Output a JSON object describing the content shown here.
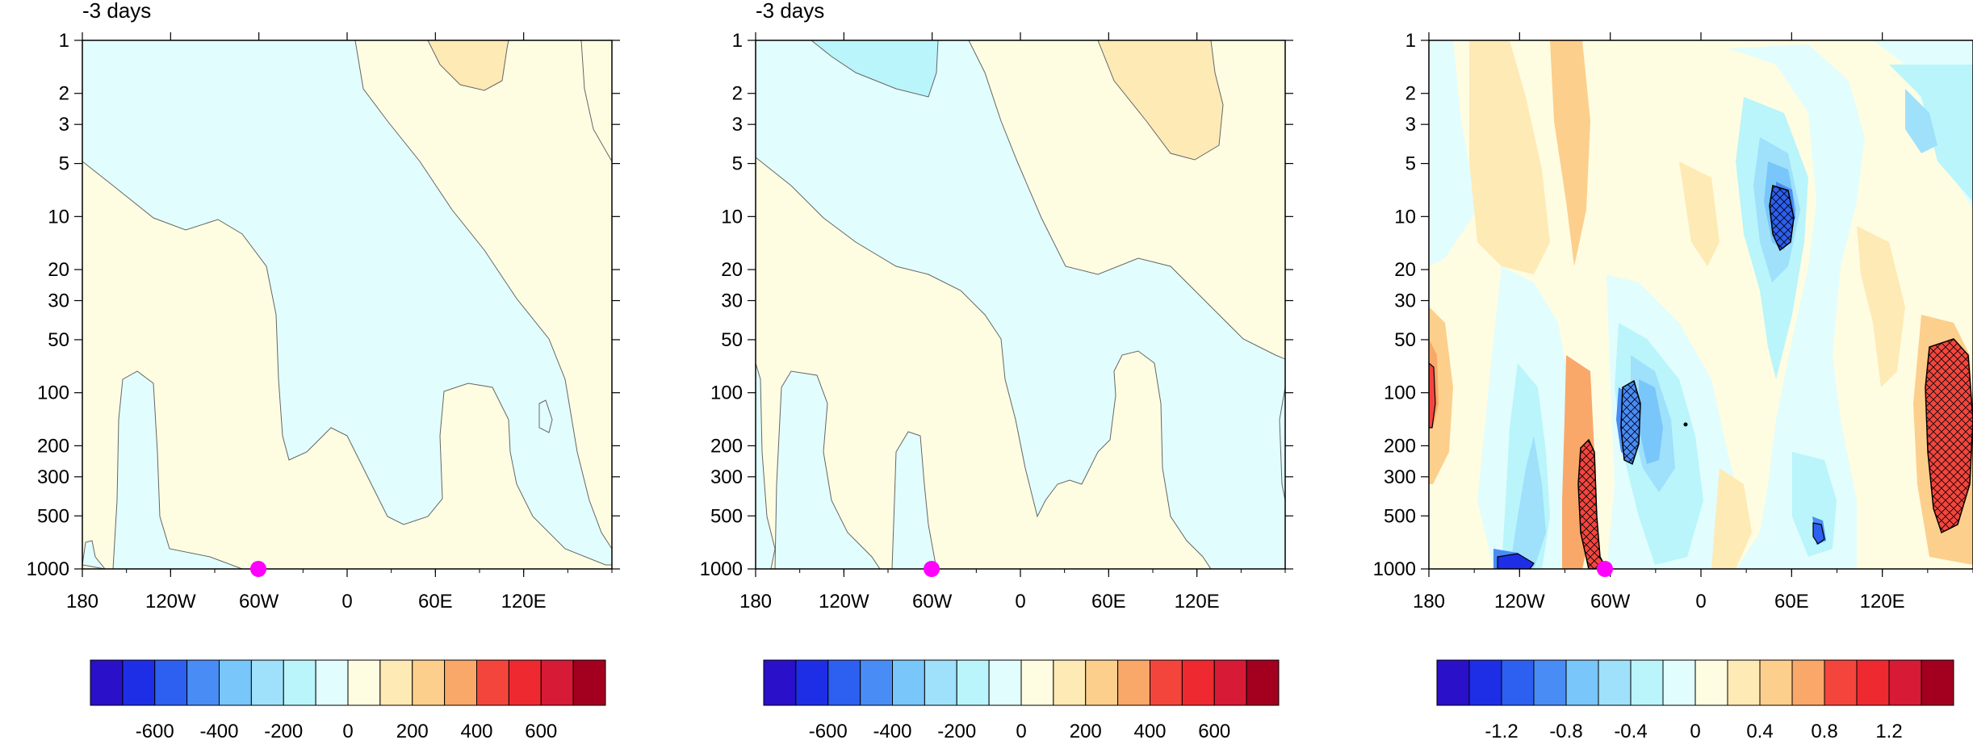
{
  "palette": [
    "#2a10c8",
    "#1e2ee6",
    "#2d5ff0",
    "#4a8cf5",
    "#78c6fa",
    "#9fe0fb",
    "#b9f5fb",
    "#e2fdfd",
    "#fefde2",
    "#feeab5",
    "#fccf8c",
    "#f9a86a",
    "#f4453d",
    "#ee2a30",
    "#d71a35",
    "#a3001f"
  ],
  "hatch_color": "#000000",
  "marker_color": "#ff00ff",
  "chart_data": [
    {
      "type": "heatmap",
      "title": "-3 days",
      "x_ticks": [
        "180",
        "120W",
        "60W",
        "0",
        "60E",
        "120E"
      ],
      "y_ticks": [
        "1",
        "2",
        "3",
        "5",
        "10",
        "20",
        "30",
        "50",
        "100",
        "200",
        "300",
        "500",
        "1000"
      ],
      "y_scale": "log",
      "ylim": [
        1000,
        1
      ],
      "x_range": [
        "180",
        "180"
      ],
      "colorbar_labels": [
        "-600",
        "-400",
        "-200",
        "0",
        "200",
        "400",
        "600"
      ],
      "colorbar_levels": [
        -700,
        -600,
        -500,
        -400,
        -300,
        -200,
        -100,
        0,
        100,
        200,
        300,
        400,
        500,
        600,
        700
      ],
      "marker": {
        "lon": "60W",
        "pressure": 1000
      }
    },
    {
      "type": "heatmap",
      "title": "-3 days",
      "x_ticks": [
        "180",
        "120W",
        "60W",
        "0",
        "60E",
        "120E"
      ],
      "y_ticks": [
        "1",
        "2",
        "3",
        "5",
        "10",
        "20",
        "30",
        "50",
        "100",
        "200",
        "300",
        "500",
        "1000"
      ],
      "y_scale": "log",
      "ylim": [
        1000,
        1
      ],
      "x_range": [
        "180",
        "180"
      ],
      "colorbar_labels": [
        "-600",
        "-400",
        "-200",
        "0",
        "200",
        "400",
        "600"
      ],
      "colorbar_levels": [
        -700,
        -600,
        -500,
        -400,
        -300,
        -200,
        -100,
        0,
        100,
        200,
        300,
        400,
        500,
        600,
        700
      ],
      "marker": {
        "lon": "60W",
        "pressure": 1000
      }
    },
    {
      "type": "heatmap",
      "title": "",
      "x_ticks": [
        "180",
        "120W",
        "60W",
        "0",
        "60E",
        "120E"
      ],
      "y_ticks": [
        "1",
        "2",
        "3",
        "5",
        "10",
        "20",
        "30",
        "50",
        "100",
        "200",
        "300",
        "500",
        "1000"
      ],
      "y_scale": "log",
      "ylim": [
        1000,
        1
      ],
      "x_range": [
        "180",
        "180"
      ],
      "colorbar_labels": [
        "-1.2",
        "-0.8",
        "-0.4",
        "0",
        "0.4",
        "0.8",
        "1.2"
      ],
      "colorbar_levels": [
        -1.4,
        -1.2,
        -1.0,
        -0.8,
        -0.6,
        -0.4,
        -0.2,
        0,
        0.2,
        0.4,
        0.6,
        0.8,
        1.0,
        1.2,
        1.4
      ],
      "hatched_regions": "significant",
      "marker": {
        "lon": "60W",
        "pressure": 1000
      }
    }
  ]
}
